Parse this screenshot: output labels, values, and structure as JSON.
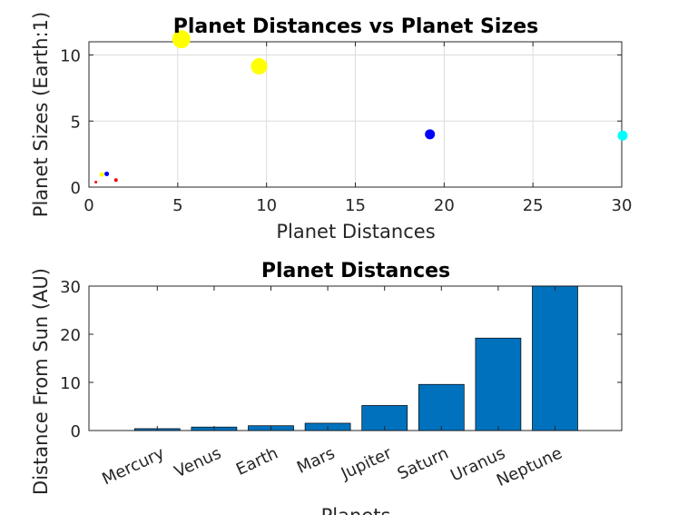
{
  "chart_data": [
    {
      "type": "scatter",
      "title": "Planet Distances vs Planet Sizes",
      "xlabel": "Planet Distances",
      "ylabel": "Planet Sizes (Earth:1)",
      "xlim": [
        0,
        30
      ],
      "ylim": [
        0,
        11
      ],
      "xticks": [
        "0",
        "5",
        "10",
        "15",
        "20",
        "25",
        "30"
      ],
      "yticks": [
        "0",
        "5",
        "10"
      ],
      "grid": true,
      "points": [
        {
          "x": 0.39,
          "y": 0.38,
          "color": "#ff0000",
          "size": 3
        },
        {
          "x": 0.72,
          "y": 0.95,
          "color": "#ffff00",
          "size": 5
        },
        {
          "x": 1.0,
          "y": 1.0,
          "color": "#0000ff",
          "size": 5
        },
        {
          "x": 1.52,
          "y": 0.53,
          "color": "#ff0000",
          "size": 4
        },
        {
          "x": 5.2,
          "y": 11.2,
          "color": "#ffff00",
          "size": 20
        },
        {
          "x": 9.58,
          "y": 9.14,
          "color": "#ffff00",
          "size": 18
        },
        {
          "x": 19.2,
          "y": 4.0,
          "color": "#0000ff",
          "size": 11
        },
        {
          "x": 30.05,
          "y": 3.9,
          "color": "#00ffff",
          "size": 11
        }
      ]
    },
    {
      "type": "bar",
      "title": "Planet Distances",
      "xlabel": "Planets",
      "ylabel": "Distance From Sun (AU)",
      "categories": [
        "Mercury",
        "Venus",
        "Earth",
        "Mars",
        "Jupiter",
        "Saturn",
        "Uranus",
        "Neptune"
      ],
      "values": [
        0.39,
        0.72,
        1.0,
        1.52,
        5.2,
        9.58,
        19.2,
        30.05
      ],
      "ylim": [
        0,
        30
      ],
      "yticks": [
        "0",
        "10",
        "20",
        "30"
      ],
      "bar_color": "#0072bd",
      "grid": false
    }
  ]
}
